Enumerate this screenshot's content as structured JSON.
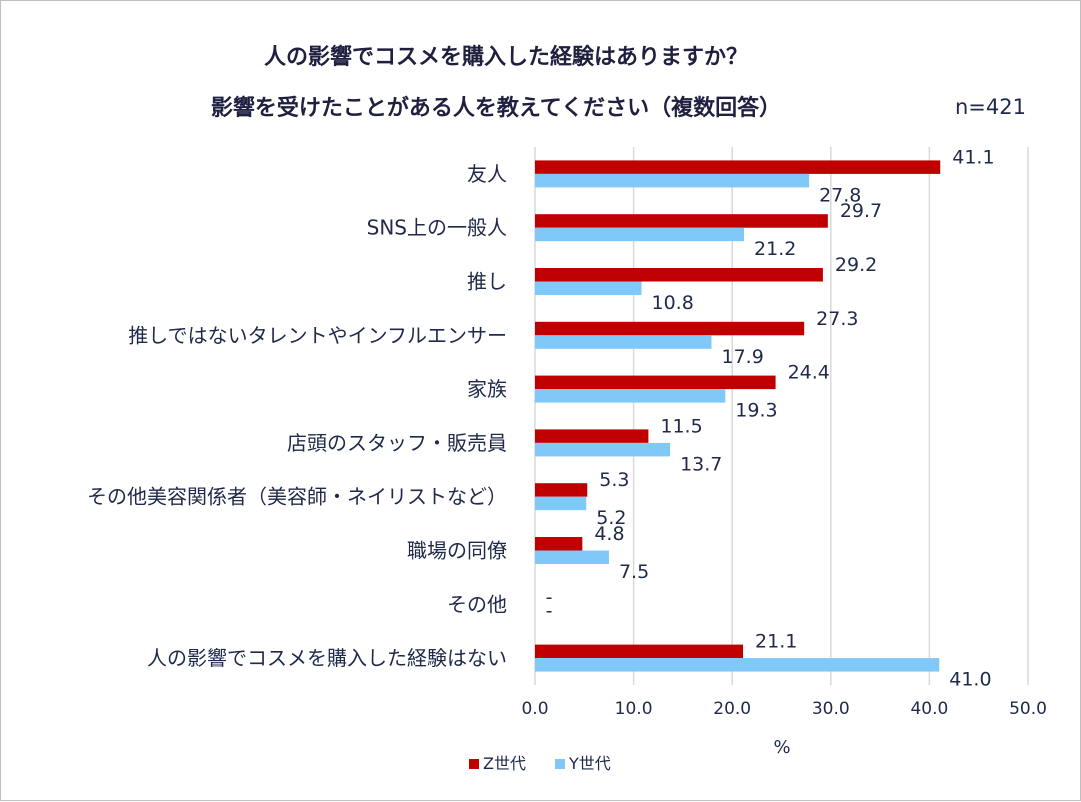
{
  "chart_data": {
    "type": "bar",
    "orientation": "horizontal",
    "title_lines": [
      "人の影響でコスメを購入した経験はありますか？",
      "影響を受けたことがある人を教えてください（複数回答）"
    ],
    "sample_size": "n=421",
    "categories": [
      "友人",
      "SNS上の一般人",
      "推し",
      "推しではないタレントやインフルエンサー",
      "家族",
      "店頭のスタッフ・販売員",
      "その他美容関係者（美容師・ネイリストなど）",
      "職場の同僚",
      "その他",
      "人の影響でコスメを購入した経験はない"
    ],
    "series": [
      {
        "name": "Z世代",
        "color": "#c00000",
        "values": [
          41.1,
          29.7,
          29.2,
          27.3,
          24.4,
          11.5,
          5.3,
          4.8,
          null,
          21.1
        ],
        "labels": [
          "41.1",
          "29.7",
          "29.2",
          "27.3",
          "24.4",
          "11.5",
          "5.3",
          "4.8",
          "-",
          "21.1"
        ]
      },
      {
        "name": "Y世代",
        "color": "#80c8f8",
        "values": [
          27.8,
          21.2,
          10.8,
          17.9,
          19.3,
          13.7,
          5.2,
          7.5,
          null,
          41.0
        ],
        "labels": [
          "27.8",
          "21.2",
          "10.8",
          "17.9",
          "19.3",
          "13.7",
          "5.2",
          "7.5",
          "-",
          "41.0"
        ]
      }
    ],
    "xlim": [
      0,
      50
    ],
    "xticks": [
      "0.0",
      "10.0",
      "20.0",
      "30.0",
      "40.0",
      "50.0"
    ],
    "xlabel": "%",
    "ylabel": "",
    "grid": "vertical",
    "legend": "bottom-center"
  }
}
